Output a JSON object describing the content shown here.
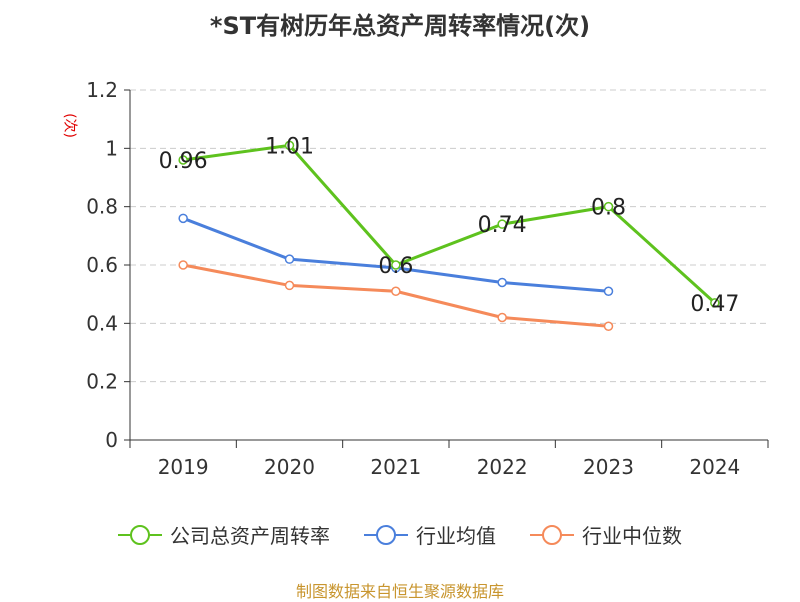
{
  "chart_data": {
    "type": "line",
    "title": "*ST有树历年总资产周转率情况(次)",
    "ylabel": "(次)",
    "xlabel": "",
    "categories": [
      "2019",
      "2020",
      "2021",
      "2022",
      "2023",
      "2024"
    ],
    "ylim": [
      0,
      1.2
    ],
    "yticks": [
      "0",
      "0.2",
      "0.4",
      "0.6",
      "0.8",
      "1",
      "1.2"
    ],
    "grid": true,
    "legend_position": "bottom",
    "series": [
      {
        "name": "公司总资产周转率",
        "color": "#5ec21e",
        "values": [
          0.96,
          1.01,
          0.6,
          0.74,
          0.8,
          0.47
        ],
        "labels": [
          "0.96",
          "1.01",
          "0.6",
          "0.74",
          "0.8",
          "0.47"
        ]
      },
      {
        "name": "行业均值",
        "color": "#4a7fdc",
        "values": [
          0.76,
          0.62,
          0.59,
          0.54,
          0.51,
          null
        ]
      },
      {
        "name": "行业中位数",
        "color": "#f58a5a",
        "values": [
          0.6,
          0.53,
          0.51,
          0.42,
          0.39,
          null
        ]
      }
    ],
    "source": "制图数据来自恒生聚源数据库"
  }
}
